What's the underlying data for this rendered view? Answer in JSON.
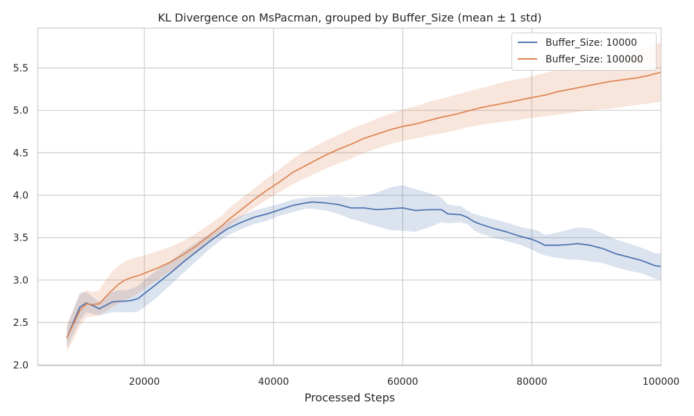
{
  "chart_data": {
    "type": "line",
    "title": "KL Divergence on MsPacman, grouped by Buffer_Size (mean ± 1 std)",
    "xlabel": "Processed Steps",
    "ylabel": "",
    "xlim": [
      3500,
      100000
    ],
    "ylim": [
      1.99,
      5.97
    ],
    "xticks": [
      20000,
      40000,
      60000,
      80000,
      100000
    ],
    "yticks": [
      2.0,
      2.5,
      3.0,
      3.5,
      4.0,
      4.5,
      5.0,
      5.5
    ],
    "grid": true,
    "legend_position": "top-right",
    "series": [
      {
        "name": "Buffer_Size: 10000",
        "color": "#4c72b0",
        "x": [
          8000,
          10000,
          11000,
          12000,
          13000,
          14000,
          15000,
          16000,
          17000,
          18000,
          19000,
          20000,
          22000,
          24000,
          26000,
          28000,
          30000,
          32000,
          33000,
          35000,
          37000,
          39000,
          41000,
          43000,
          45000,
          46000,
          48000,
          50000,
          52000,
          54000,
          56000,
          58000,
          60000,
          62000,
          64000,
          66000,
          67000,
          69000,
          70000,
          71000,
          72000,
          74000,
          76000,
          78000,
          80000,
          81000,
          82000,
          84000,
          86000,
          87000,
          89000,
          91000,
          93000,
          95000,
          97000,
          98000,
          99000,
          100000
        ],
        "mean": [
          2.32,
          2.68,
          2.73,
          2.7,
          2.66,
          2.7,
          2.74,
          2.75,
          2.75,
          2.76,
          2.78,
          2.84,
          2.96,
          3.08,
          3.21,
          3.33,
          3.45,
          3.56,
          3.61,
          3.68,
          3.74,
          3.78,
          3.83,
          3.88,
          3.91,
          3.92,
          3.91,
          3.89,
          3.85,
          3.85,
          3.83,
          3.84,
          3.85,
          3.82,
          3.83,
          3.83,
          3.78,
          3.77,
          3.74,
          3.69,
          3.66,
          3.61,
          3.57,
          3.52,
          3.48,
          3.45,
          3.41,
          3.41,
          3.42,
          3.43,
          3.41,
          3.37,
          3.31,
          3.27,
          3.23,
          3.2,
          3.17,
          3.16
        ],
        "lower": [
          2.2,
          2.52,
          2.62,
          2.6,
          2.58,
          2.6,
          2.62,
          2.62,
          2.62,
          2.62,
          2.63,
          2.68,
          2.8,
          2.94,
          3.08,
          3.22,
          3.36,
          3.48,
          3.53,
          3.6,
          3.66,
          3.7,
          3.76,
          3.8,
          3.84,
          3.84,
          3.82,
          3.78,
          3.72,
          3.68,
          3.63,
          3.59,
          3.58,
          3.57,
          3.62,
          3.68,
          3.67,
          3.68,
          3.66,
          3.59,
          3.55,
          3.5,
          3.46,
          3.42,
          3.36,
          3.32,
          3.29,
          3.26,
          3.24,
          3.24,
          3.22,
          3.2,
          3.15,
          3.11,
          3.08,
          3.05,
          3.02,
          3.0
        ],
        "upper": [
          2.45,
          2.85,
          2.86,
          2.8,
          2.74,
          2.79,
          2.86,
          2.88,
          2.88,
          2.9,
          2.93,
          3.0,
          3.12,
          3.22,
          3.34,
          3.44,
          3.54,
          3.64,
          3.69,
          3.76,
          3.82,
          3.86,
          3.9,
          3.95,
          3.97,
          3.98,
          3.98,
          3.99,
          3.97,
          3.99,
          4.03,
          4.09,
          4.12,
          4.07,
          4.03,
          3.97,
          3.89,
          3.87,
          3.82,
          3.78,
          3.76,
          3.72,
          3.68,
          3.63,
          3.6,
          3.58,
          3.53,
          3.56,
          3.6,
          3.62,
          3.61,
          3.55,
          3.48,
          3.43,
          3.38,
          3.35,
          3.32,
          3.31
        ]
      },
      {
        "name": "Buffer_Size: 100000",
        "color": "#dd8452",
        "x": [
          8000,
          10000,
          11000,
          12000,
          13000,
          14000,
          15000,
          16000,
          17000,
          18000,
          19000,
          20000,
          22000,
          24000,
          26000,
          28000,
          30000,
          32000,
          33000,
          35000,
          37000,
          39000,
          41000,
          43000,
          44000,
          46000,
          48000,
          50000,
          52000,
          54000,
          56000,
          58000,
          60000,
          62000,
          64000,
          66000,
          68000,
          70000,
          72000,
          74000,
          76000,
          78000,
          80000,
          82000,
          84000,
          86000,
          88000,
          90000,
          92000,
          94000,
          96000,
          98000,
          100000
        ],
        "mean": [
          2.32,
          2.64,
          2.72,
          2.71,
          2.72,
          2.8,
          2.88,
          2.95,
          3.0,
          3.03,
          3.05,
          3.08,
          3.14,
          3.21,
          3.3,
          3.4,
          3.52,
          3.64,
          3.71,
          3.83,
          3.95,
          4.06,
          4.16,
          4.27,
          4.31,
          4.39,
          4.47,
          4.54,
          4.6,
          4.67,
          4.72,
          4.77,
          4.81,
          4.84,
          4.88,
          4.92,
          4.95,
          4.99,
          5.03,
          5.06,
          5.09,
          5.12,
          5.15,
          5.18,
          5.22,
          5.25,
          5.28,
          5.31,
          5.34,
          5.36,
          5.38,
          5.41,
          5.45
        ],
        "lower": [
          2.15,
          2.45,
          2.56,
          2.57,
          2.59,
          2.63,
          2.68,
          2.72,
          2.76,
          2.8,
          2.84,
          2.9,
          3.0,
          3.1,
          3.2,
          3.32,
          3.44,
          3.56,
          3.63,
          3.74,
          3.85,
          3.95,
          4.04,
          4.13,
          4.17,
          4.24,
          4.31,
          4.37,
          4.43,
          4.5,
          4.55,
          4.6,
          4.64,
          4.67,
          4.7,
          4.73,
          4.76,
          4.8,
          4.83,
          4.85,
          4.87,
          4.89,
          4.91,
          4.93,
          4.95,
          4.97,
          4.99,
          5.01,
          5.02,
          5.04,
          5.06,
          5.08,
          5.1
        ],
        "upper": [
          2.48,
          2.82,
          2.88,
          2.86,
          2.88,
          3.0,
          3.1,
          3.17,
          3.22,
          3.25,
          3.27,
          3.29,
          3.34,
          3.39,
          3.46,
          3.55,
          3.65,
          3.76,
          3.84,
          3.96,
          4.08,
          4.2,
          4.31,
          4.43,
          4.48,
          4.56,
          4.64,
          4.71,
          4.78,
          4.84,
          4.9,
          4.96,
          5.01,
          5.05,
          5.1,
          5.14,
          5.18,
          5.22,
          5.26,
          5.3,
          5.34,
          5.37,
          5.4,
          5.44,
          5.48,
          5.52,
          5.56,
          5.6,
          5.63,
          5.67,
          5.71,
          5.75,
          5.8
        ]
      }
    ]
  }
}
